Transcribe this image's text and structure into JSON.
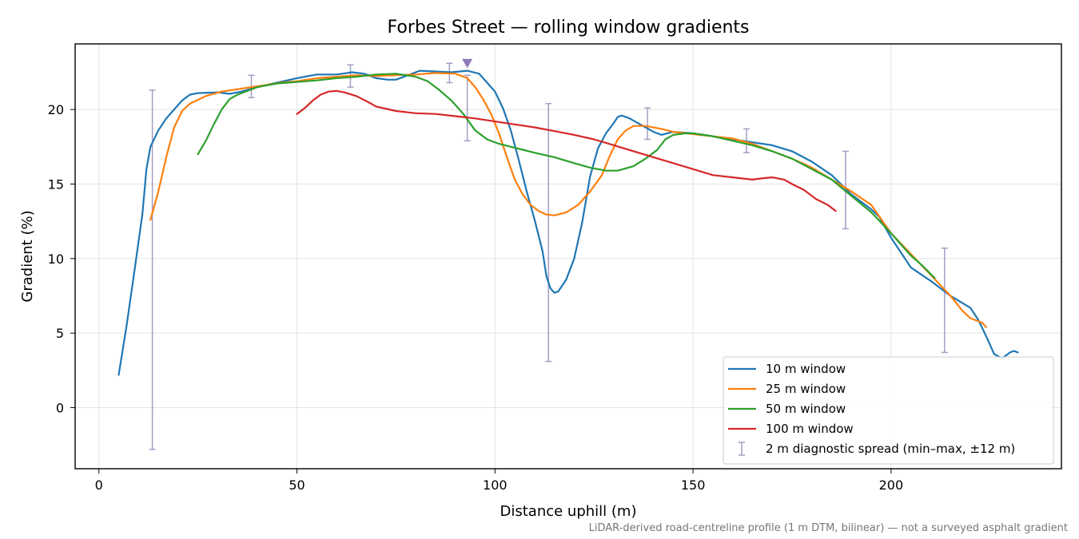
{
  "chart_data": {
    "type": "line",
    "title": "Forbes Street — rolling window gradients",
    "xlabel": "Distance uphill (m)",
    "ylabel": "Gradient (%)",
    "xlim": [
      -6,
      243
    ],
    "ylim": [
      -4.1,
      24.4
    ],
    "xticks": [
      0,
      50,
      100,
      150,
      200
    ],
    "yticks": [
      0,
      5,
      10,
      15,
      20
    ],
    "grid": true,
    "legend_position": "lower-right",
    "footnote": "LiDAR-derived road-centreline profile (1 m DTM, bilinear) — not a surveyed asphalt gradient",
    "series": [
      {
        "name": "10 m window",
        "color": "#1f77b4",
        "points": [
          [
            5,
            2.2
          ],
          [
            7,
            5.5
          ],
          [
            9,
            9.2
          ],
          [
            11,
            13
          ],
          [
            12,
            16
          ],
          [
            13,
            17.5
          ],
          [
            15,
            18.6
          ],
          [
            17,
            19.4
          ],
          [
            19,
            20.0
          ],
          [
            21,
            20.6
          ],
          [
            23,
            21.0
          ],
          [
            25,
            21.1
          ],
          [
            30,
            21.15
          ],
          [
            33,
            21.05
          ],
          [
            36,
            21.2
          ],
          [
            40,
            21.5
          ],
          [
            45,
            21.8
          ],
          [
            50,
            22.1
          ],
          [
            55,
            22.35
          ],
          [
            60,
            22.35
          ],
          [
            64,
            22.5
          ],
          [
            67,
            22.4
          ],
          [
            70,
            22.1
          ],
          [
            73,
            22.0
          ],
          [
            75,
            22.0
          ],
          [
            78,
            22.3
          ],
          [
            81,
            22.6
          ],
          [
            85,
            22.55
          ],
          [
            89,
            22.5
          ],
          [
            93,
            22.6
          ],
          [
            96,
            22.4
          ],
          [
            98,
            21.8
          ],
          [
            100,
            21.2
          ],
          [
            102,
            20.1
          ],
          [
            104,
            18.6
          ],
          [
            106,
            16.6
          ],
          [
            108,
            14.5
          ],
          [
            110,
            12.6
          ],
          [
            112,
            10.5
          ],
          [
            113,
            8.8
          ],
          [
            114,
            8.0
          ],
          [
            115,
            7.7
          ],
          [
            116,
            7.8
          ],
          [
            118,
            8.6
          ],
          [
            120,
            10.0
          ],
          [
            122,
            12.4
          ],
          [
            124,
            15.5
          ],
          [
            126,
            17.4
          ],
          [
            128,
            18.4
          ],
          [
            130,
            19.1
          ],
          [
            131,
            19.5
          ],
          [
            132,
            19.6
          ],
          [
            134,
            19.4
          ],
          [
            136,
            19.1
          ],
          [
            138,
            18.8
          ],
          [
            140,
            18.5
          ],
          [
            142,
            18.3
          ],
          [
            145,
            18.5
          ],
          [
            150,
            18.4
          ],
          [
            155,
            18.2
          ],
          [
            160,
            18.0
          ],
          [
            165,
            17.8
          ],
          [
            170,
            17.6
          ],
          [
            175,
            17.2
          ],
          [
            180,
            16.5
          ],
          [
            185,
            15.6
          ],
          [
            190,
            14.3
          ],
          [
            195,
            13.3
          ],
          [
            197,
            12.8
          ],
          [
            200,
            11.4
          ],
          [
            205,
            9.4
          ],
          [
            210,
            8.5
          ],
          [
            215,
            7.5
          ],
          [
            220,
            6.7
          ],
          [
            222,
            5.9
          ],
          [
            224,
            4.8
          ],
          [
            226,
            3.6
          ],
          [
            228,
            3.3
          ],
          [
            230,
            3.7
          ],
          [
            231,
            3.8
          ],
          [
            232,
            3.7
          ]
        ]
      },
      {
        "name": "25 m window",
        "color": "#ff7f0e",
        "points": [
          [
            13,
            12.6
          ],
          [
            15,
            14.5
          ],
          [
            17,
            16.8
          ],
          [
            19,
            18.8
          ],
          [
            21,
            19.9
          ],
          [
            23,
            20.4
          ],
          [
            27,
            20.9
          ],
          [
            31,
            21.2
          ],
          [
            36,
            21.4
          ],
          [
            41,
            21.6
          ],
          [
            46,
            21.8
          ],
          [
            50,
            21.9
          ],
          [
            55,
            22.1
          ],
          [
            60,
            22.2
          ],
          [
            65,
            22.3
          ],
          [
            70,
            22.25
          ],
          [
            75,
            22.3
          ],
          [
            80,
            22.35
          ],
          [
            85,
            22.45
          ],
          [
            90,
            22.4
          ],
          [
            93,
            22.1
          ],
          [
            95,
            21.5
          ],
          [
            97,
            20.7
          ],
          [
            99,
            19.7
          ],
          [
            101,
            18.4
          ],
          [
            103,
            16.8
          ],
          [
            105,
            15.3
          ],
          [
            107,
            14.3
          ],
          [
            109,
            13.6
          ],
          [
            111,
            13.2
          ],
          [
            113,
            12.95
          ],
          [
            115,
            12.9
          ],
          [
            118,
            13.1
          ],
          [
            121,
            13.6
          ],
          [
            124,
            14.5
          ],
          [
            127,
            15.6
          ],
          [
            129,
            16.9
          ],
          [
            131,
            18.0
          ],
          [
            133,
            18.6
          ],
          [
            135,
            18.9
          ],
          [
            138,
            18.9
          ],
          [
            142,
            18.7
          ],
          [
            145,
            18.5
          ],
          [
            150,
            18.35
          ],
          [
            155,
            18.2
          ],
          [
            160,
            18.05
          ],
          [
            165,
            17.7
          ],
          [
            170,
            17.2
          ],
          [
            175,
            16.7
          ],
          [
            180,
            16.1
          ],
          [
            185,
            15.3
          ],
          [
            190,
            14.5
          ],
          [
            195,
            13.6
          ],
          [
            200,
            11.7
          ],
          [
            205,
            10.3
          ],
          [
            210,
            8.9
          ],
          [
            215,
            7.5
          ],
          [
            218,
            6.5
          ],
          [
            220,
            6.0
          ],
          [
            223,
            5.7
          ],
          [
            224,
            5.4
          ]
        ]
      },
      {
        "name": "50 m window",
        "color": "#2ca02c",
        "points": [
          [
            25,
            17.0
          ],
          [
            27,
            17.9
          ],
          [
            29,
            19.0
          ],
          [
            31,
            20.0
          ],
          [
            33,
            20.7
          ],
          [
            35,
            21.0
          ],
          [
            40,
            21.5
          ],
          [
            45,
            21.75
          ],
          [
            50,
            21.85
          ],
          [
            55,
            21.95
          ],
          [
            60,
            22.1
          ],
          [
            65,
            22.2
          ],
          [
            70,
            22.35
          ],
          [
            75,
            22.4
          ],
          [
            80,
            22.2
          ],
          [
            83,
            21.9
          ],
          [
            86,
            21.3
          ],
          [
            89,
            20.6
          ],
          [
            92,
            19.7
          ],
          [
            95,
            18.6
          ],
          [
            98,
            18.0
          ],
          [
            101,
            17.7
          ],
          [
            104,
            17.5
          ],
          [
            107,
            17.3
          ],
          [
            110,
            17.1
          ],
          [
            115,
            16.8
          ],
          [
            120,
            16.4
          ],
          [
            124,
            16.1
          ],
          [
            128,
            15.9
          ],
          [
            131,
            15.9
          ],
          [
            135,
            16.2
          ],
          [
            138,
            16.7
          ],
          [
            141,
            17.3
          ],
          [
            143,
            18.0
          ],
          [
            145,
            18.3
          ],
          [
            148,
            18.4
          ],
          [
            150,
            18.4
          ],
          [
            155,
            18.2
          ],
          [
            160,
            17.9
          ],
          [
            165,
            17.6
          ],
          [
            170,
            17.2
          ],
          [
            175,
            16.7
          ],
          [
            180,
            16.0
          ],
          [
            185,
            15.3
          ],
          [
            190,
            14.2
          ],
          [
            195,
            13.1
          ],
          [
            200,
            11.7
          ],
          [
            205,
            10.2
          ],
          [
            208,
            9.5
          ],
          [
            211,
            8.7
          ]
        ]
      },
      {
        "name": "100 m window",
        "color": "#d62728",
        "points": [
          [
            50,
            19.7
          ],
          [
            52,
            20.1
          ],
          [
            54,
            20.6
          ],
          [
            56,
            21.0
          ],
          [
            58,
            21.2
          ],
          [
            60,
            21.25
          ],
          [
            62,
            21.15
          ],
          [
            65,
            20.9
          ],
          [
            68,
            20.5
          ],
          [
            70,
            20.2
          ],
          [
            75,
            19.9
          ],
          [
            80,
            19.75
          ],
          [
            85,
            19.7
          ],
          [
            90,
            19.55
          ],
          [
            95,
            19.4
          ],
          [
            100,
            19.2
          ],
          [
            105,
            19.0
          ],
          [
            110,
            18.8
          ],
          [
            115,
            18.55
          ],
          [
            120,
            18.3
          ],
          [
            125,
            18.0
          ],
          [
            130,
            17.6
          ],
          [
            135,
            17.2
          ],
          [
            140,
            16.8
          ],
          [
            145,
            16.4
          ],
          [
            150,
            16.0
          ],
          [
            155,
            15.6
          ],
          [
            160,
            15.45
          ],
          [
            165,
            15.3
          ],
          [
            168,
            15.4
          ],
          [
            170,
            15.45
          ],
          [
            173,
            15.3
          ],
          [
            175,
            15.0
          ],
          [
            178,
            14.6
          ],
          [
            181,
            14.0
          ],
          [
            184,
            13.6
          ],
          [
            186,
            13.2
          ]
        ]
      }
    ],
    "diagnostic": {
      "name": "2 m diagnostic spread (min–max, ±12 m)",
      "color": "#a39ec4",
      "bars": [
        {
          "x": 13.5,
          "low": -2.8,
          "high": 21.3
        },
        {
          "x": 38.5,
          "low": 20.8,
          "high": 22.3
        },
        {
          "x": 63.5,
          "low": 21.5,
          "high": 23.0
        },
        {
          "x": 88.5,
          "low": 21.8,
          "high": 23.1
        },
        {
          "x": 93.0,
          "low": 17.9,
          "high": 22.3
        },
        {
          "x": 113.5,
          "low": 3.1,
          "high": 20.4
        },
        {
          "x": 138.5,
          "low": 18.0,
          "high": 20.1
        },
        {
          "x": 163.5,
          "low": 17.1,
          "high": 18.7
        },
        {
          "x": 188.5,
          "low": 12.0,
          "high": 17.2
        },
        {
          "x": 213.5,
          "low": 3.7,
          "high": 10.7
        }
      ]
    },
    "marker": {
      "x": 93.0,
      "y": 23.1,
      "color": "#8e7cb8"
    }
  }
}
